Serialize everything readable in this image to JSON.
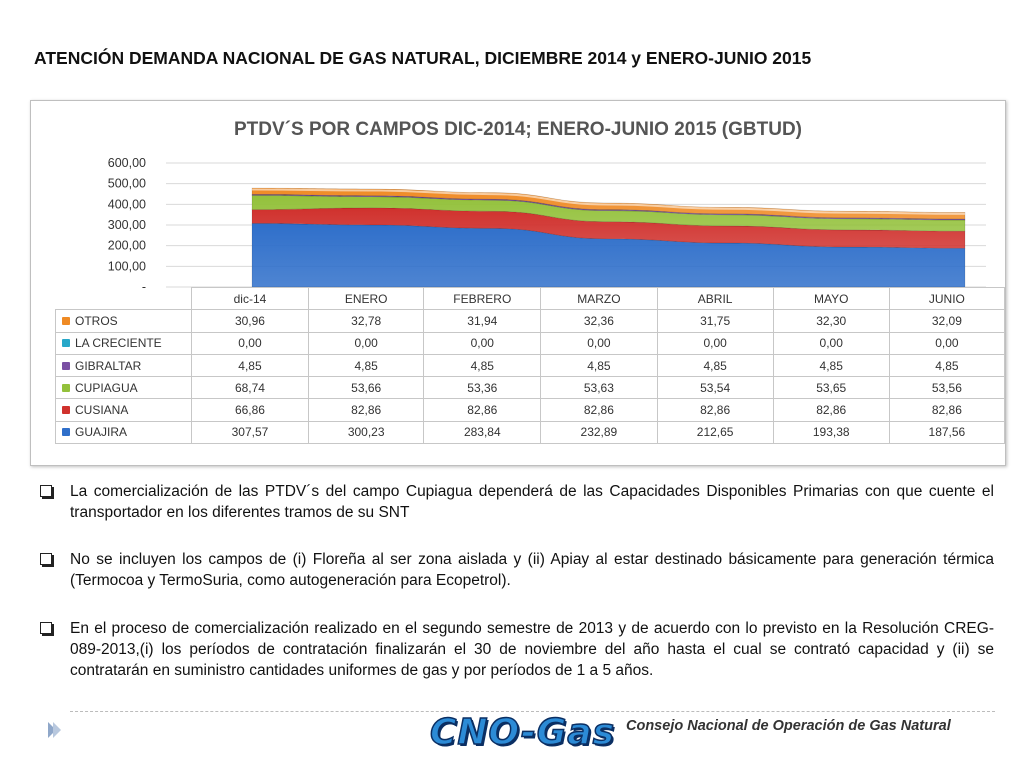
{
  "page": {
    "title": "ATENCIÓN DEMANDA NACIONAL DE GAS NATURAL, DICIEMBRE 2014 y ENERO-JUNIO 2015"
  },
  "chart_data": {
    "type": "area",
    "stacked": true,
    "title": "PTDV´S POR CAMPOS DIC-2014; ENERO-JUNIO 2015 (GBTUD)",
    "categories": [
      "dic-14",
      "ENERO",
      "FEBRERO",
      "MARZO",
      "ABRIL",
      "MAYO",
      "JUNIO"
    ],
    "y_ticks": [
      "-",
      "100,00",
      "200,00",
      "300,00",
      "400,00",
      "500,00",
      "600,00"
    ],
    "ylim": [
      0,
      600
    ],
    "grid": true,
    "legend": "data-table",
    "series_bottom_to_top": [
      {
        "name": "GUAJIRA",
        "color": "#2f6fca",
        "values": [
          307.57,
          300.23,
          283.84,
          232.89,
          212.65,
          193.38,
          187.56
        ],
        "labels": [
          "307,57",
          "300,23",
          "283,84",
          "232,89",
          "212,65",
          "193,38",
          "187,56"
        ]
      },
      {
        "name": "CUSIANA",
        "color": "#d0312d",
        "values": [
          66.86,
          82.86,
          82.86,
          82.86,
          82.86,
          82.86,
          82.86
        ],
        "labels": [
          "66,86",
          "82,86",
          "82,86",
          "82,86",
          "82,86",
          "82,86",
          "82,86"
        ]
      },
      {
        "name": "CUPIAGUA",
        "color": "#93c13b",
        "values": [
          68.74,
          53.66,
          53.36,
          53.63,
          53.54,
          53.65,
          53.56
        ],
        "labels": [
          "68,74",
          "53,66",
          "53,36",
          "53,63",
          "53,54",
          "53,65",
          "53,56"
        ]
      },
      {
        "name": "GIBRALTAR",
        "color": "#7a4fa3",
        "values": [
          4.85,
          4.85,
          4.85,
          4.85,
          4.85,
          4.85,
          4.85
        ],
        "labels": [
          "4,85",
          "4,85",
          "4,85",
          "4,85",
          "4,85",
          "4,85",
          "4,85"
        ]
      },
      {
        "name": "LA CRECIENTE",
        "color": "#27a8c9",
        "values": [
          0,
          0,
          0,
          0,
          0,
          0,
          0
        ],
        "labels": [
          "0,00",
          "0,00",
          "0,00",
          "0,00",
          "0,00",
          "0,00",
          "0,00"
        ]
      },
      {
        "name": "OTROS",
        "color": "#ef8a24",
        "values": [
          30.96,
          32.78,
          31.94,
          32.36,
          31.75,
          32.3,
          32.09
        ],
        "labels": [
          "30,96",
          "32,78",
          "31,94",
          "32,36",
          "31,75",
          "32,30",
          "32,09"
        ]
      }
    ],
    "table_order": [
      "OTROS",
      "LA CRECIENTE",
      "GIBRALTAR",
      "CUPIAGUA",
      "CUSIANA",
      "GUAJIRA"
    ]
  },
  "bullets": [
    "La comercialización de las PTDV´s del campo Cupiagua dependerá de las Capacidades Disponibles Primarias con que cuente el transportador en los diferentes tramos de su SNT",
    "No se incluyen los campos de (i) Floreña al ser zona aislada y (ii) Apiay al estar destinado básicamente para generación térmica (Termocoa y TermoSuria, como autogeneración para Ecopetrol).",
    "En el proceso de comercialización realizado en el segundo semestre de 2013 y de acuerdo con lo previsto en la Resolución CREG-089-2013,(i)  los períodos de contratación finalizarán el 30 de noviembre del año  hasta el cual se contrató capacidad y (ii) se contratarán en suministro cantidades uniformes de gas y por períodos de 1 a 5 años."
  ],
  "footer": {
    "logo_text": "CNO-Gas",
    "caption": "Consejo Nacional de Operación de Gas Natural"
  }
}
